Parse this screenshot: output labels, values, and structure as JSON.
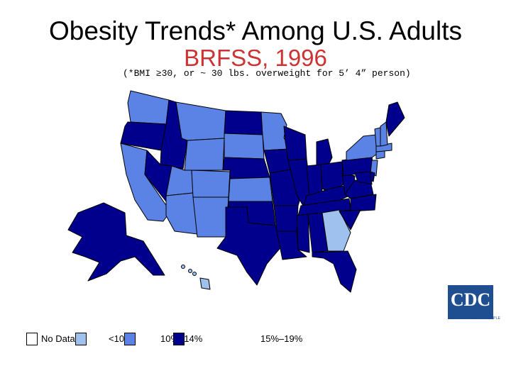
{
  "title": "Obesity Trends* Among U.S. Adults",
  "subtitle": "BRFSS, 1996",
  "footnote": "(*BMI ≥30, or ~ 30 lbs. overweight for 5’ 4” person)",
  "legend": [
    {
      "label": "No Data",
      "color": "#ffffff"
    },
    {
      "label": "<10%",
      "color": "#9ec1ee"
    },
    {
      "label": "10%–14%",
      "color": "#5b83e6"
    },
    {
      "label": "15%–19%",
      "color": "#00008c"
    }
  ],
  "logo": {
    "text": "CDC",
    "tagline": "SAFER·HEALTHIER·PEOPLE"
  }
}
